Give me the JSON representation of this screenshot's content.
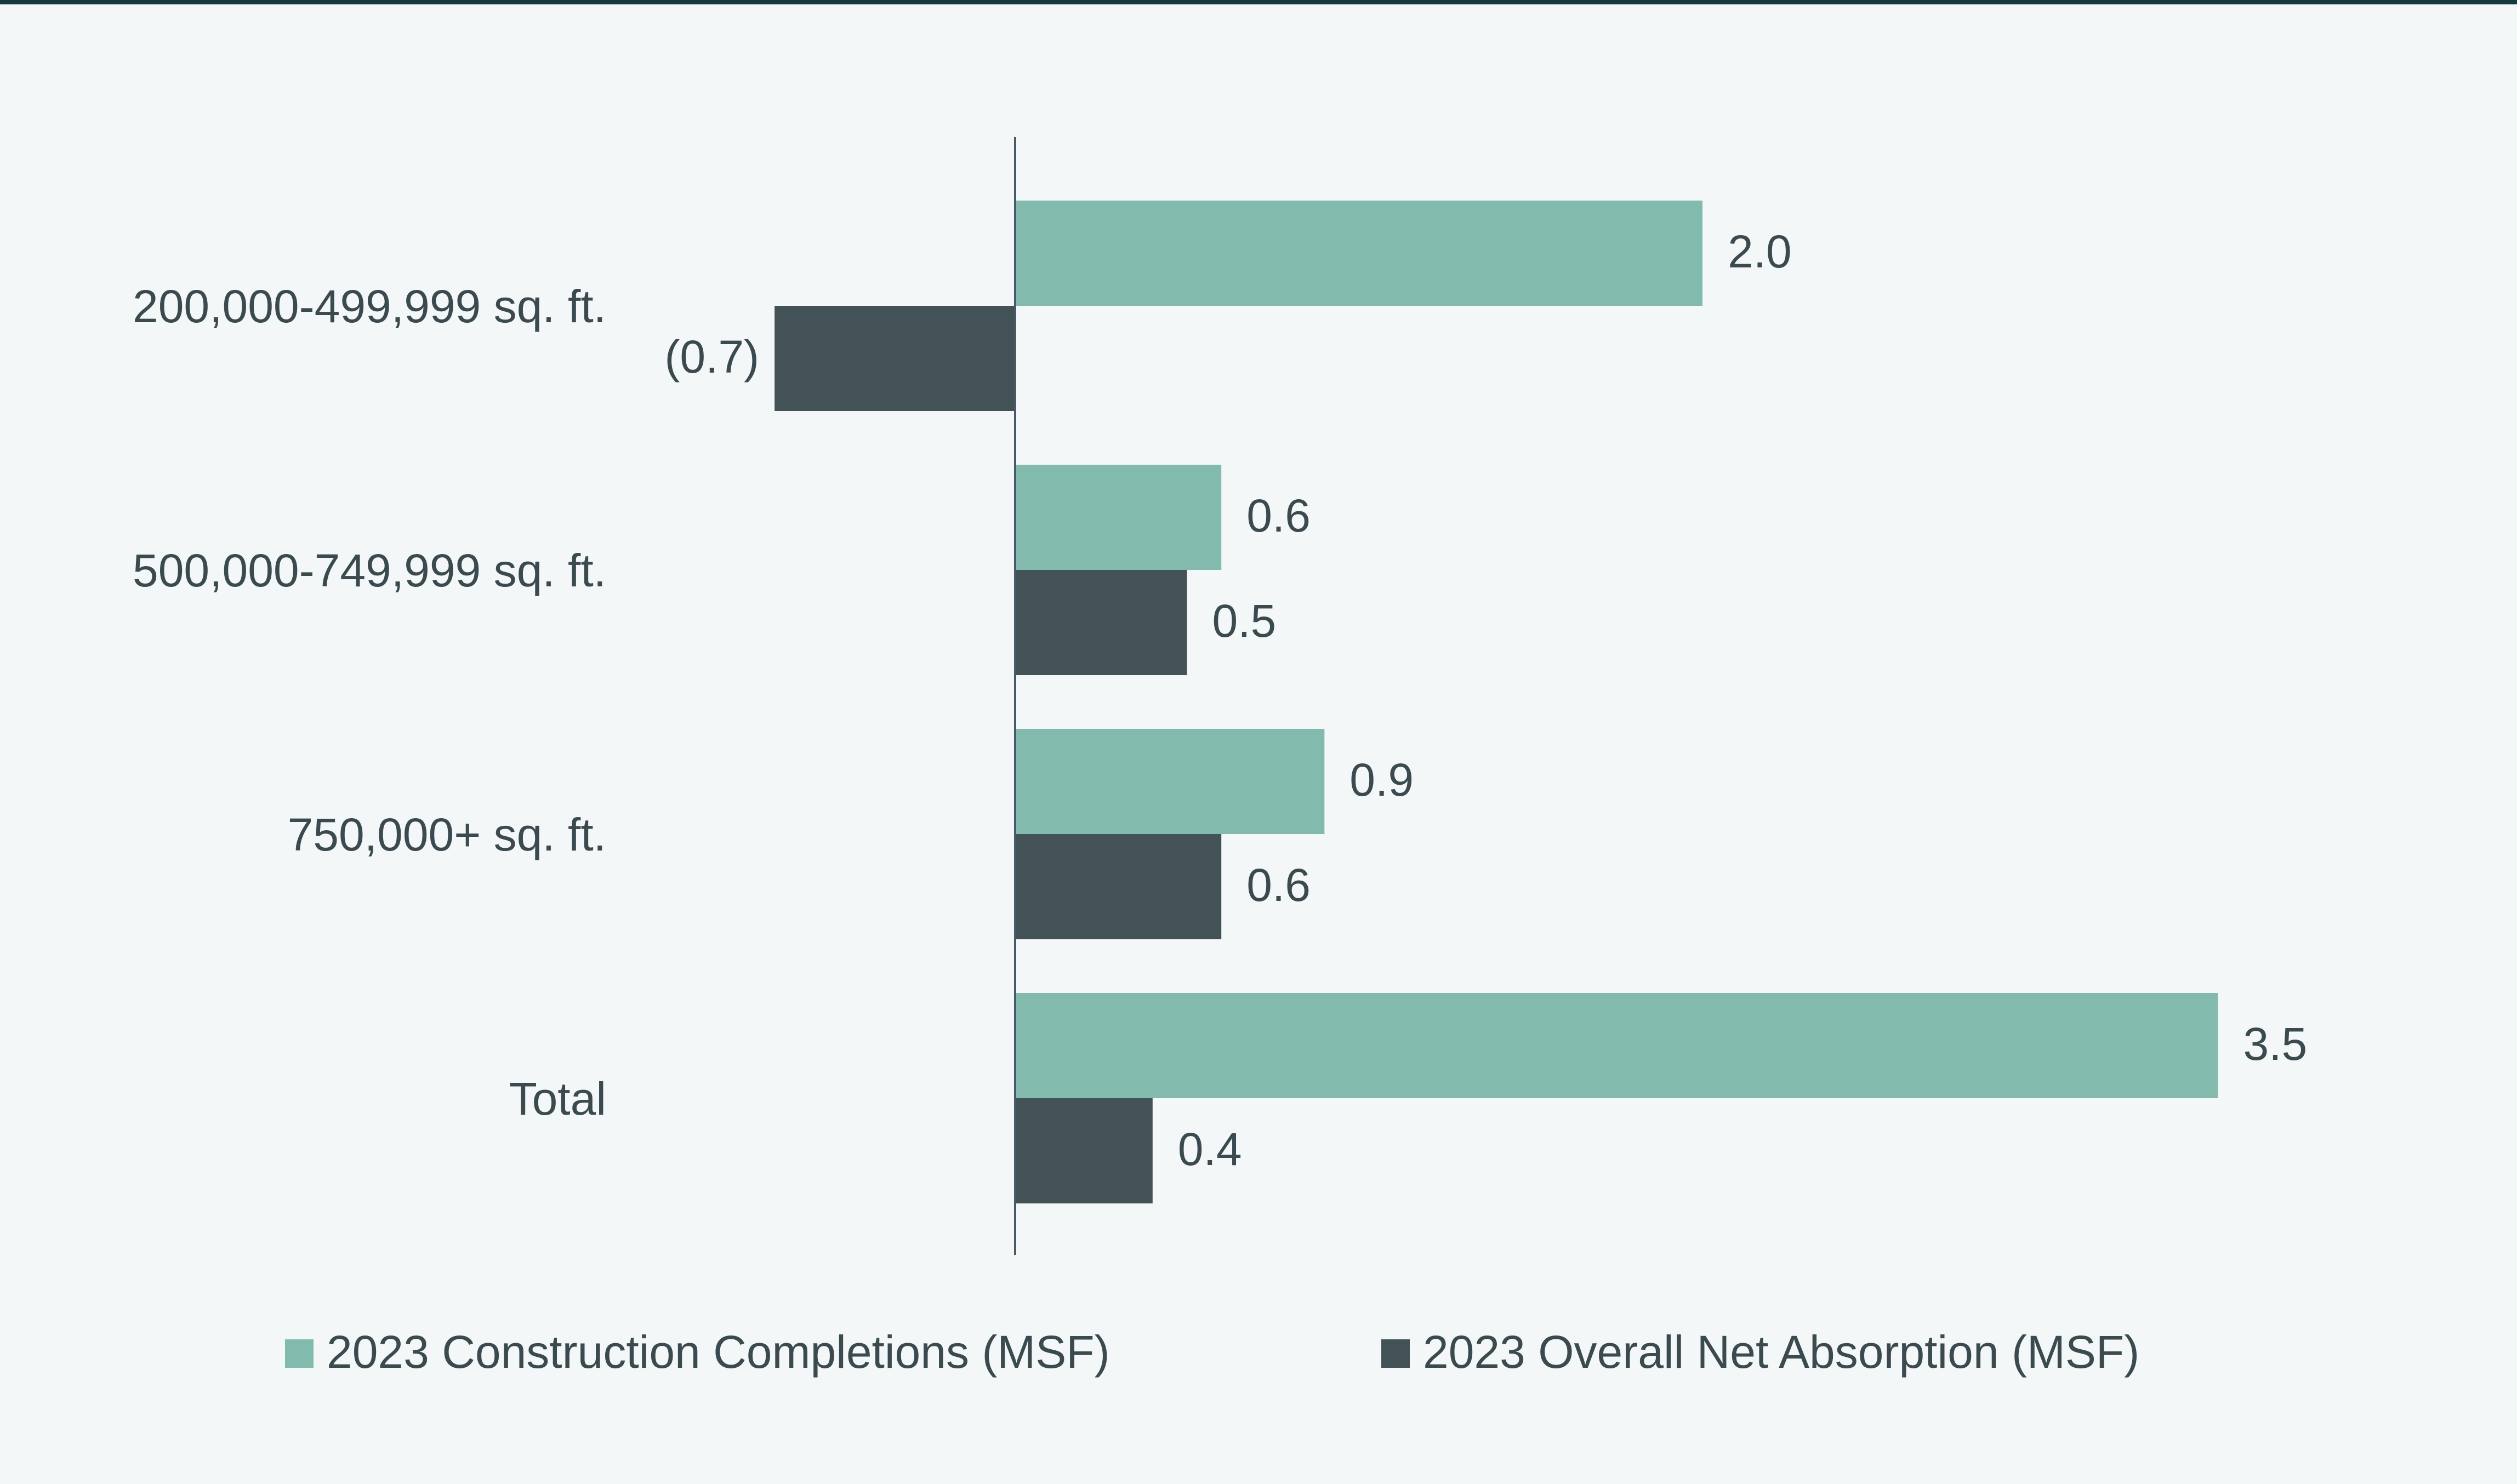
{
  "chart_data": {
    "type": "bar",
    "orientation": "horizontal",
    "title": "",
    "xlabel": "",
    "ylabel": "",
    "categories": [
      "200,000-499,999 sq. ft.",
      "500,000-749,999 sq. ft.",
      "750,000+ sq. ft.",
      "Total"
    ],
    "series": [
      {
        "name": "2023 Construction Completions (MSF)",
        "color": "#82bbad",
        "values": [
          2.0,
          0.6,
          0.9,
          3.5
        ],
        "labels": [
          "2.0",
          "0.6",
          "0.9",
          "3.5"
        ]
      },
      {
        "name": "2023 Overall Net Absorption (MSF)",
        "color": "#435256",
        "values": [
          -0.7,
          0.5,
          0.6,
          0.4
        ],
        "labels": [
          "(0.7)",
          "0.5",
          "0.6",
          "0.4"
        ]
      }
    ],
    "xlim": [
      -0.7,
      3.5
    ],
    "grid": false,
    "legend": "bottom"
  }
}
